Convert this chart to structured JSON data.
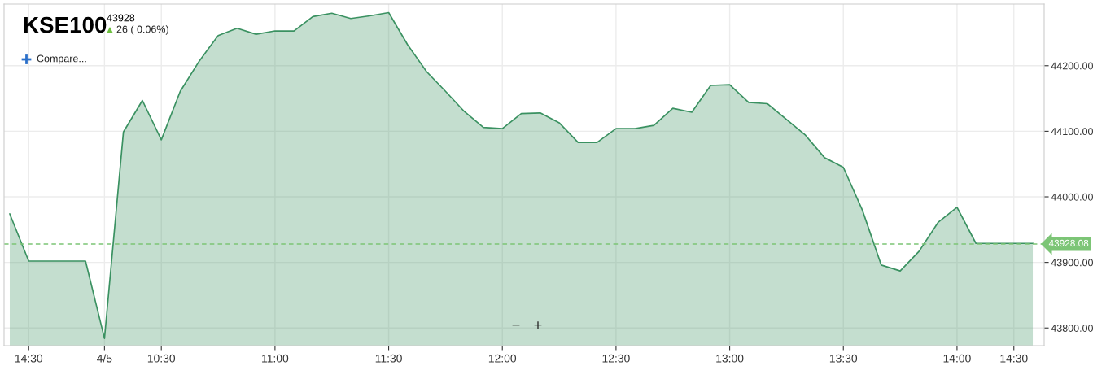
{
  "chart_data": {
    "type": "area",
    "title": "KSE100",
    "subtitle": "43928",
    "annotations": [
      "26 ( 0.06%)",
      "Compare...",
      "−",
      "+"
    ],
    "categories": [
      null,
      "14:30",
      null,
      null,
      null,
      "4/5",
      null,
      null,
      "10:30",
      null,
      null,
      null,
      null,
      null,
      "11:00",
      null,
      null,
      null,
      null,
      null,
      "11:30",
      null,
      null,
      null,
      null,
      null,
      "12:00",
      null,
      null,
      null,
      null,
      null,
      "12:30",
      null,
      null,
      null,
      null,
      null,
      "13:00",
      null,
      null,
      null,
      null,
      null,
      "13:30",
      null,
      null,
      null,
      null,
      null,
      "14:00",
      null,
      null,
      "14:30",
      null
    ],
    "series": [
      {
        "color": "#3a9161",
        "values": [
          43974,
          43902,
          43902,
          43902,
          43902,
          43784,
          44099,
          44147,
          44087,
          44161,
          44207,
          44246,
          44257,
          44248,
          44253,
          44253,
          44275,
          44280,
          44272,
          44276,
          44281,
          44232,
          44191,
          44161,
          44130,
          44106,
          44104,
          44127,
          44128,
          44113,
          44083,
          44083,
          44104,
          44104,
          44109,
          44135,
          44129,
          44170,
          44171,
          44144,
          44142,
          44118,
          44094,
          44060,
          44045,
          43980,
          43896,
          43887,
          43917,
          43961,
          43984,
          43929,
          43929,
          43929,
          43929
        ]
      }
    ],
    "ylim": [
      43773,
      44294
    ],
    "yticks": [
      {
        "value": 43800,
        "label": "43800.00"
      },
      {
        "value": 43900,
        "label": "43900.00"
      },
      {
        "value": 44000,
        "label": "44000.00"
      },
      {
        "value": 44100,
        "label": "44100.00"
      },
      {
        "value": 44200,
        "label": "44200.00"
      }
    ],
    "ref_lines": [
      {
        "axis": "y",
        "value": 43928.08,
        "label": "43928.08",
        "color": "#7cc576",
        "line_style": "dashed"
      }
    ],
    "grid": true,
    "legend": false
  }
}
